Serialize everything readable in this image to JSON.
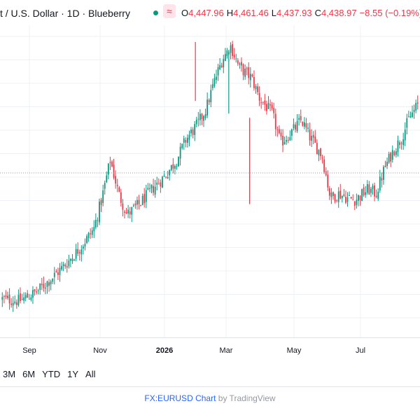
{
  "header": {
    "symbol_title": "t / U.S. Dollar · 1D · Blueberry",
    "approx_icon": "≈",
    "open_key": "O",
    "open_value": "4,447.96",
    "high_key": "H",
    "high_value": "4,461.46",
    "low_key": "L",
    "low_value": "4,437.93",
    "close_key": "C",
    "close_value": "4,438.97",
    "change": "−8.55 (−0.19%)",
    "status_color": "#089981",
    "down_color": "#f23645"
  },
  "x_axis": {
    "labels": [
      "Sep",
      "Nov",
      "2026",
      "Mar",
      "May",
      "Jul"
    ]
  },
  "ranges": [
    "3M",
    "6M",
    "YTD",
    "1Y",
    "All"
  ],
  "footer": {
    "link_text": "FX:EURUSD Chart",
    "by_text": "by TradingView"
  },
  "chart_data": {
    "type": "candlestick",
    "title": "",
    "xlabel": "",
    "ylabel": "",
    "last_value": 4438.97,
    "up_color": "#089981",
    "down_color": "#f23645",
    "grid": true,
    "y_axis_visible": false,
    "price_path": [
      [
        0.0,
        0.0
      ],
      [
        0.04,
        -0.01
      ],
      [
        0.08,
        0.03
      ],
      [
        0.12,
        0.1
      ],
      [
        0.16,
        0.18
      ],
      [
        0.19,
        0.25
      ],
      [
        0.22,
        0.33
      ],
      [
        0.24,
        0.48
      ],
      [
        0.26,
        0.66
      ],
      [
        0.28,
        0.5
      ],
      [
        0.3,
        0.4
      ],
      [
        0.33,
        0.45
      ],
      [
        0.36,
        0.52
      ],
      [
        0.39,
        0.58
      ],
      [
        0.42,
        0.66
      ],
      [
        0.44,
        0.75
      ],
      [
        0.47,
        0.83
      ],
      [
        0.49,
        0.9
      ],
      [
        0.51,
        1.03
      ],
      [
        0.53,
        1.14
      ],
      [
        0.55,
        1.2
      ],
      [
        0.57,
        1.1
      ],
      [
        0.6,
        1.05
      ],
      [
        0.62,
        0.95
      ],
      [
        0.65,
        0.88
      ],
      [
        0.67,
        0.74
      ],
      [
        0.7,
        0.8
      ],
      [
        0.72,
        0.85
      ],
      [
        0.74,
        0.77
      ],
      [
        0.77,
        0.68
      ],
      [
        0.79,
        0.48
      ],
      [
        0.81,
        0.5
      ],
      [
        0.83,
        0.48
      ],
      [
        0.85,
        0.47
      ],
      [
        0.88,
        0.52
      ],
      [
        0.9,
        0.5
      ],
      [
        0.92,
        0.62
      ],
      [
        0.94,
        0.7
      ],
      [
        0.96,
        0.76
      ],
      [
        0.98,
        0.86
      ],
      [
        1.0,
        0.92
      ]
    ],
    "axis_ticks": [
      "Sep",
      "Nov",
      "2026",
      "Mar",
      "May",
      "Jul"
    ]
  }
}
